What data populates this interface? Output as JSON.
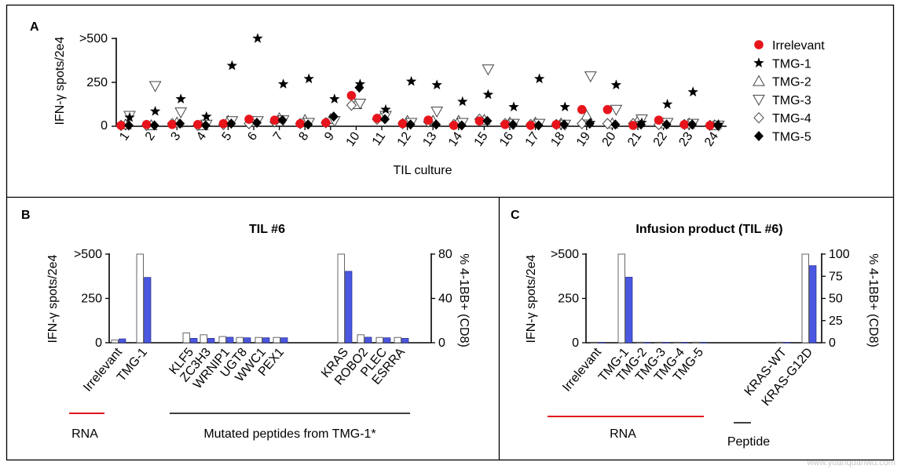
{
  "watermark": "www.yuanquanwu.com",
  "chart_data": [
    {
      "panel": "A",
      "type": "scatter",
      "xlabel": "TIL culture",
      "ylabel": "IFN-γ spots/2e4",
      "yticks": [
        "0",
        "250",
        ">500"
      ],
      "ylim": [
        0,
        500
      ],
      "categories": [
        "1",
        "2",
        "3",
        "4",
        "5",
        "6",
        "7",
        "8",
        "9",
        "10",
        "11",
        "12",
        "13",
        "14",
        "15",
        "16",
        "17",
        "18",
        "19",
        "20",
        "21",
        "22",
        "23",
        "24"
      ],
      "legend": [
        "Irrelevant",
        "TMG-1",
        "TMG-2",
        "TMG-3",
        "TMG-4",
        "TMG-5"
      ],
      "series": [
        {
          "name": "Irrelevant",
          "marker": "circle",
          "color": "#e8141c",
          "values": [
            5,
            10,
            10,
            10,
            15,
            40,
            35,
            15,
            20,
            175,
            45,
            15,
            35,
            5,
            30,
            10,
            5,
            10,
            95,
            95,
            5,
            35,
            10,
            5
          ]
        },
        {
          "name": "TMG-1",
          "marker": "star",
          "color": "#000000",
          "values": [
            50,
            85,
            155,
            55,
            345,
            500,
            240,
            270,
            155,
            240,
            95,
            255,
            235,
            140,
            180,
            110,
            270,
            110,
            20,
            235,
            20,
            125,
            195,
            10
          ]
        },
        {
          "name": "TMG-2",
          "marker": "triangle-up",
          "color": "#ffffff",
          "values": [
            10,
            5,
            20,
            5,
            30,
            25,
            45,
            35,
            40,
            125,
            55,
            30,
            30,
            30,
            35,
            20,
            20,
            15,
            60,
            15,
            30,
            15,
            15,
            5
          ]
        },
        {
          "name": "TMG-3",
          "marker": "triangle-down",
          "color": "#ffffff",
          "values": [
            60,
            230,
            80,
            10,
            30,
            30,
            35,
            20,
            30,
            130,
            60,
            20,
            85,
            20,
            325,
            15,
            15,
            10,
            285,
            95,
            40,
            20,
            15,
            5
          ]
        },
        {
          "name": "TMG-4",
          "marker": "diamond",
          "color": "#ffffff",
          "values": [
            5,
            5,
            15,
            5,
            10,
            15,
            25,
            15,
            20,
            120,
            40,
            15,
            25,
            10,
            40,
            15,
            10,
            10,
            15,
            15,
            15,
            10,
            10,
            5
          ]
        },
        {
          "name": "TMG-5",
          "marker": "diamond-filled",
          "color": "#000000",
          "values": [
            5,
            5,
            15,
            5,
            15,
            20,
            35,
            10,
            55,
            220,
            40,
            10,
            10,
            5,
            30,
            10,
            5,
            10,
            15,
            10,
            10,
            10,
            10,
            5
          ]
        }
      ]
    },
    {
      "panel": "B",
      "type": "bar",
      "title": "TIL #6",
      "ylabel": "IFN-γ spots/2e4",
      "y2label": "% 4-1BB+ (CD8)",
      "yticks": [
        "0",
        "250",
        ">500"
      ],
      "y2ticks": [
        "0",
        "40",
        "80"
      ],
      "ylim": [
        0,
        500
      ],
      "y2lim": [
        0,
        80
      ],
      "categories": [
        "Irrelevant",
        "TMG-1",
        "KLF5",
        "ZC3H3",
        "WRNIP1",
        "UGT8",
        "WWC1",
        "PEX1",
        "KRAS",
        "ROBO2",
        "PLEC",
        "ESRRA"
      ],
      "series": [
        {
          "name": "IFN-γ spots",
          "axis": "left",
          "color": "#ffffff",
          "values": [
            15,
            500,
            55,
            45,
            35,
            30,
            30,
            30,
            500,
            45,
            30,
            30
          ]
        },
        {
          "name": "% 4-1BB+",
          "axis": "right",
          "color": "#4a57e0",
          "values": [
            3.5,
            59,
            4,
            4,
            5,
            4.5,
            4.5,
            4.5,
            64.5,
            5,
            4.5,
            4
          ]
        }
      ],
      "groups": [
        "RNA",
        "Mutated peptides from TMG-1*"
      ]
    },
    {
      "panel": "C",
      "type": "bar",
      "title": "Infusion product (TIL #6)",
      "ylabel": "IFN-γ spots/2e4",
      "y2label": "% 4-1BB+ (CD8)",
      "yticks": [
        "0",
        "250",
        ">500"
      ],
      "y2ticks": [
        "0",
        "25",
        "50",
        "75",
        "100"
      ],
      "ylim": [
        0,
        500
      ],
      "y2lim": [
        0,
        100
      ],
      "categories": [
        "Irrelevant",
        "TMG-1",
        "TMG-2",
        "TMG-3",
        "TMG-4",
        "TMG-5",
        "KRAS-WT",
        "KRAS-G12D"
      ],
      "series": [
        {
          "name": "IFN-γ spots",
          "axis": "left",
          "color": "#ffffff",
          "values": [
            3,
            500,
            3,
            3,
            3,
            3,
            3,
            500
          ]
        },
        {
          "name": "% 4-1BB+",
          "axis": "right",
          "color": "#4a57e0",
          "values": [
            0.5,
            74,
            0.5,
            0.5,
            0.5,
            0.5,
            0.5,
            87
          ]
        }
      ],
      "groups": [
        "RNA",
        "Peptide"
      ]
    }
  ]
}
